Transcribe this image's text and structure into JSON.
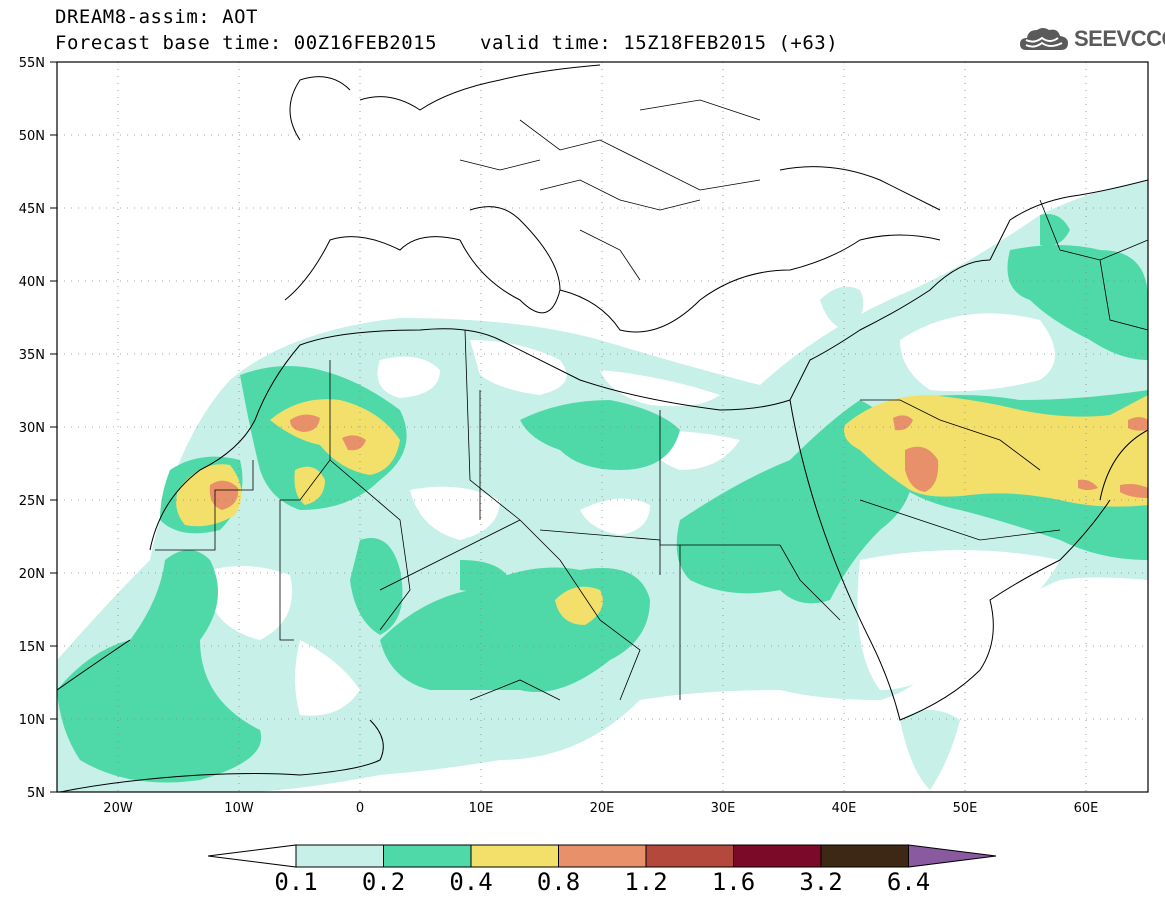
{
  "header": {
    "title_line1": "DREAM8-assim: AOT",
    "title_line2": "Forecast base time: 00Z16FEB2015",
    "valid_time": "valid time: 15Z18FEB2015 (+63)",
    "logo_text": "SEEVCCC"
  },
  "map": {
    "lon_range": [
      -25,
      65
    ],
    "lat_range": [
      5,
      55
    ],
    "lat_labels": [
      "5N",
      "10N",
      "15N",
      "20N",
      "25N",
      "30N",
      "35N",
      "40N",
      "45N",
      "50N",
      "55N"
    ],
    "lon_labels": [
      "20W",
      "10W",
      "0",
      "10E",
      "20E",
      "30E",
      "40E",
      "50E",
      "60E"
    ]
  },
  "colorbar": {
    "labels": [
      "0.1",
      "0.2",
      "0.4",
      "0.8",
      "1.2",
      "1.6",
      "3.2",
      "6.4"
    ],
    "colors": [
      "#c6f0e8",
      "#4fd9a8",
      "#f3e06a",
      "#e8906a",
      "#b5483c",
      "#7a0a28",
      "#3c2814",
      "#8a5aa0"
    ]
  }
}
